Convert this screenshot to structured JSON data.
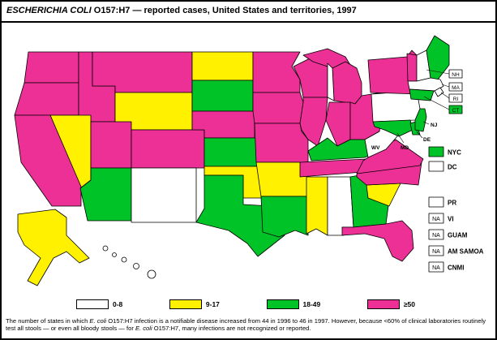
{
  "title": {
    "segments": [
      {
        "text": "ESCHERICHIA COLI",
        "italic": true
      },
      {
        "text": " O157:H7 — reported cases, United States and territories, 1997",
        "italic": false
      }
    ]
  },
  "colors": {
    "c1": "#FFFFFF",
    "c2": "#FFF100",
    "c3": "#00C327",
    "c4": "#ED3096",
    "na": "#FFFFFF",
    "outline": "#000000"
  },
  "legend": {
    "items": [
      {
        "key": "c1",
        "label": "0-8"
      },
      {
        "key": "c2",
        "label": "9-17"
      },
      {
        "key": "c3",
        "label": "18-49"
      },
      {
        "key": "c4",
        "label": "≥50"
      }
    ]
  },
  "side_legend": [
    {
      "label": "NYC",
      "category": "c3"
    },
    {
      "label": "DC",
      "category": "c1"
    },
    {
      "label": "PR",
      "category": "c1"
    },
    {
      "label": "VI",
      "category": "na",
      "box_text": "NA"
    },
    {
      "label": "GUAM",
      "category": "na",
      "box_text": "NA"
    },
    {
      "label": "AM SAMOA",
      "category": "na",
      "box_text": "NA"
    },
    {
      "label": "CNMI",
      "category": "na",
      "box_text": "NA"
    }
  ],
  "footnote": {
    "segments": [
      {
        "text": "The number of states in which ",
        "italic": false
      },
      {
        "text": "E. coli",
        "italic": true
      },
      {
        "text": " O157:H7 infection is a notifiable disease increased from 44 in 1996 to 46 in 1997. However, because <60% of clinical laboratories routinely test all stools — or even all bloody stools — for ",
        "italic": false
      },
      {
        "text": "E. coli",
        "italic": true
      },
      {
        "text": " O157:H7, many infections are not recognized or reported.",
        "italic": false
      }
    ]
  },
  "map": {
    "states": {
      "WA": {
        "name": "Washington",
        "category": "c4"
      },
      "OR": {
        "name": "Oregon",
        "category": "c4"
      },
      "CA": {
        "name": "California",
        "category": "c4"
      },
      "NV": {
        "name": "Nevada",
        "category": "c2"
      },
      "ID": {
        "name": "Idaho",
        "category": "c4"
      },
      "MT": {
        "name": "Montana",
        "category": "c4"
      },
      "WY": {
        "name": "Wyoming",
        "category": "c2"
      },
      "UT": {
        "name": "Utah",
        "category": "c4"
      },
      "AZ": {
        "name": "Arizona",
        "category": "c3"
      },
      "NM": {
        "name": "New Mexico",
        "category": "c1"
      },
      "CO": {
        "name": "Colorado",
        "category": "c4"
      },
      "ND": {
        "name": "North Dakota",
        "category": "c2"
      },
      "SD": {
        "name": "South Dakota",
        "category": "c3"
      },
      "NE": {
        "name": "Nebraska",
        "category": "c4"
      },
      "KS": {
        "name": "Kansas",
        "category": "c3"
      },
      "OK": {
        "name": "Oklahoma",
        "category": "c2"
      },
      "TX": {
        "name": "Texas",
        "category": "c3"
      },
      "MN": {
        "name": "Minnesota",
        "category": "c4"
      },
      "IA": {
        "name": "Iowa",
        "category": "c4"
      },
      "MO": {
        "name": "Missouri",
        "category": "c4"
      },
      "AR": {
        "name": "Arkansas",
        "category": "c2"
      },
      "LA": {
        "name": "Louisiana",
        "category": "c3"
      },
      "WI": {
        "name": "Wisconsin",
        "category": "c4"
      },
      "IL": {
        "name": "Illinois",
        "category": "c4"
      },
      "MI": {
        "name": "Michigan",
        "category": "c4"
      },
      "IN": {
        "name": "Indiana",
        "category": "c4"
      },
      "OH": {
        "name": "Ohio",
        "category": "c4"
      },
      "KY": {
        "name": "Kentucky",
        "category": "c3"
      },
      "TN": {
        "name": "Tennessee",
        "category": "c4"
      },
      "MS": {
        "name": "Mississippi",
        "category": "c2"
      },
      "AL": {
        "name": "Alabama",
        "category": "c1"
      },
      "GA": {
        "name": "Georgia",
        "category": "c3"
      },
      "FL": {
        "name": "Florida",
        "category": "c4"
      },
      "SC": {
        "name": "South Carolina",
        "category": "c2"
      },
      "NC": {
        "name": "North Carolina",
        "category": "c4"
      },
      "VA": {
        "name": "Virginia",
        "category": "c4"
      },
      "WV": {
        "name": "West Virginia",
        "category": "c1",
        "label": "WV"
      },
      "PA": {
        "name": "Pennsylvania",
        "category": "c1"
      },
      "NY": {
        "name": "New York",
        "category": "c4"
      },
      "VT": {
        "name": "Vermont",
        "category": "c4"
      },
      "NH": {
        "name": "New Hampshire",
        "category": "c1",
        "label": "NH"
      },
      "ME": {
        "name": "Maine",
        "category": "c3"
      },
      "MA": {
        "name": "Massachusetts",
        "category": "c1",
        "label": "MA"
      },
      "RI": {
        "name": "Rhode Island",
        "category": "c1",
        "label": "RI"
      },
      "CT": {
        "name": "Connecticut",
        "category": "c3",
        "label": "CT"
      },
      "NJ": {
        "name": "New Jersey",
        "category": "c3",
        "label": "NJ"
      },
      "DE": {
        "name": "Delaware",
        "category": "c3",
        "label": "DE"
      },
      "MD": {
        "name": "Maryland",
        "category": "c3",
        "label": "MD"
      },
      "AK": {
        "name": "Alaska",
        "category": "c2"
      },
      "HI": {
        "name": "Hawaii",
        "category": "c1"
      }
    }
  }
}
